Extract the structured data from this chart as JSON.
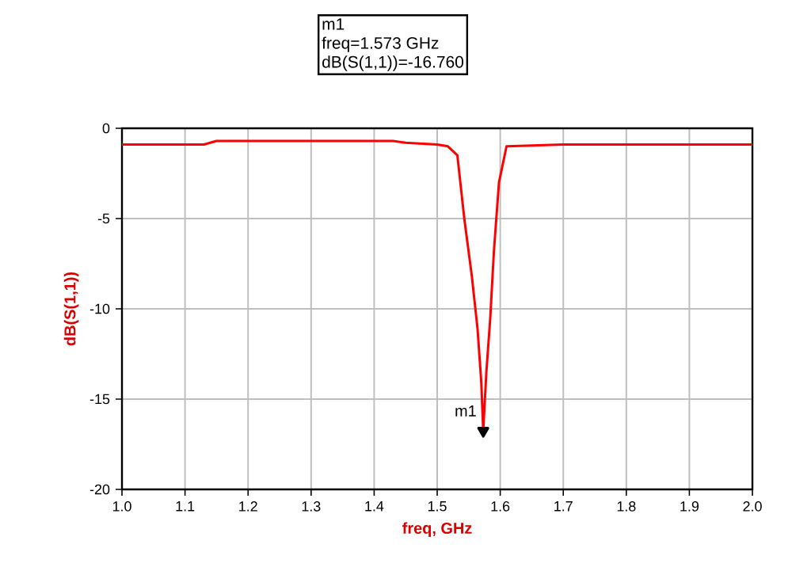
{
  "chart_data": {
    "type": "line",
    "xlabel": "freq, GHz",
    "ylabel": "dB(S(1,1))",
    "x": [
      1.0,
      1.05,
      1.13,
      1.15,
      1.3,
      1.43,
      1.45,
      1.5,
      1.517,
      1.532,
      1.543,
      1.555,
      1.564,
      1.57,
      1.573,
      1.578,
      1.584,
      1.59,
      1.598,
      1.61,
      1.7,
      1.8,
      1.9,
      2.0
    ],
    "series": [
      {
        "color": "#ff0000",
        "values": [
          -0.9,
          -0.9,
          -0.9,
          -0.7,
          -0.7,
          -0.7,
          -0.8,
          -0.9,
          -1.0,
          -1.5,
          -5.0,
          -8.2,
          -11.1,
          -14.1,
          -16.76,
          -13.5,
          -10.6,
          -6.8,
          -3.0,
          -1.0,
          -0.9,
          -0.9,
          -0.9,
          -0.9
        ]
      },
      {
        "type": "scatter",
        "marker": "triangle",
        "color": "#000000",
        "x": [
          1.573
        ],
        "values": [
          -16.76
        ]
      }
    ],
    "xlim": [
      1.0,
      2.0
    ],
    "ylim": [
      -20,
      0
    ],
    "xticks": [
      {
        "value": 1.0,
        "label": "1.0"
      },
      {
        "value": 1.1,
        "label": "1.1"
      },
      {
        "value": 1.2,
        "label": "1.2"
      },
      {
        "value": 1.3,
        "label": "1.3"
      },
      {
        "value": 1.4,
        "label": "1.4"
      },
      {
        "value": 1.5,
        "label": "1.5"
      },
      {
        "value": 1.6,
        "label": "1.6"
      },
      {
        "value": 1.7,
        "label": "1.7"
      },
      {
        "value": 1.8,
        "label": "1.8"
      },
      {
        "value": 1.9,
        "label": "1.9"
      },
      {
        "value": 2.0,
        "label": "2.0"
      }
    ],
    "yticks": [
      0,
      -5,
      -10,
      -15,
      -20
    ],
    "grid": true,
    "marker": "none",
    "line_style": "solid",
    "annotations": [
      {
        "text": "m1",
        "x": 1.573,
        "y": -16.76
      },
      "m1",
      "freq=1.573 GHz",
      "dB(S(1,1))=-16.760"
    ]
  }
}
